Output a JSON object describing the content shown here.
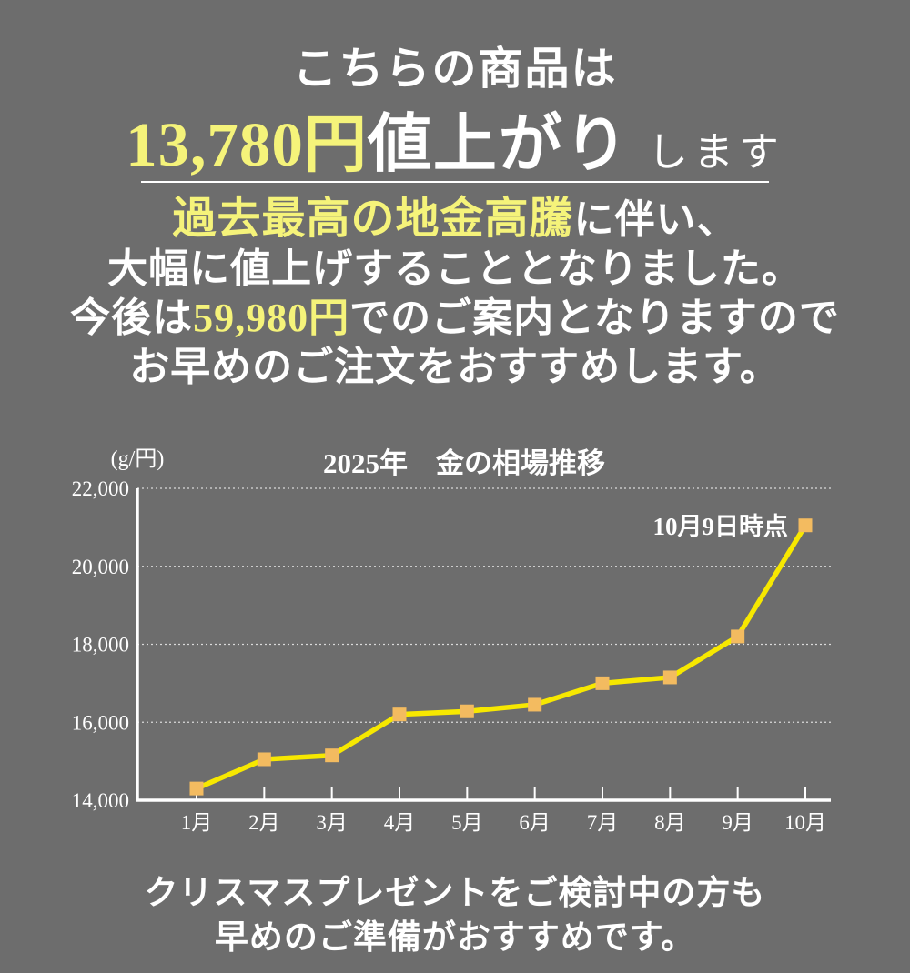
{
  "page": {
    "colors": {
      "background": "#6d6d6d",
      "text": "#ffffff",
      "highlight_yellow": "#f5f37a",
      "chart_line_yellow": "#f7e800",
      "marker_orange": "#f3bb60"
    },
    "header": {
      "line1": "こちらの商品は",
      "line2_price": "13,780円",
      "line2_main": "値上がり",
      "line2_suffix": "します"
    },
    "notice": {
      "line1_highlight": "過去最高の地金高騰",
      "line1_rest": "に伴い、",
      "line2": "大幅に値上げすることとなりました。",
      "line3_prefix": "今後は",
      "line3_highlight": "59,980円",
      "line3_rest": "でのご案内となりますので",
      "line4": "お早めのご注文をおすすめします。"
    },
    "footer": {
      "line1": "クリスマスプレゼントをご検討中の方も",
      "line2": "早めのご準備がおすすめです。"
    }
  },
  "chart_data": {
    "type": "line",
    "title": "2025年　金の相場推移",
    "unit_label": "(g/円)",
    "annotation": "10月9日時点",
    "categories": [
      "1月",
      "2月",
      "3月",
      "4月",
      "5月",
      "6月",
      "7月",
      "8月",
      "9月",
      "10月"
    ],
    "values": [
      14300,
      15050,
      15150,
      16200,
      16280,
      16450,
      17000,
      17150,
      18200,
      21050
    ],
    "ylim": [
      14000,
      22000
    ],
    "y_tick_values": [
      14000,
      16000,
      18000,
      20000,
      22000
    ],
    "y_tick_labels": [
      "14,000",
      "16,000",
      "18,000",
      "20,000",
      "22,000"
    ],
    "grid": "horizontal-dotted",
    "legend": "none",
    "line_color": "#f7e800",
    "marker_color": "#f3bb60",
    "annotation_color": "#f7e800",
    "axis_color": "#ffffff"
  }
}
